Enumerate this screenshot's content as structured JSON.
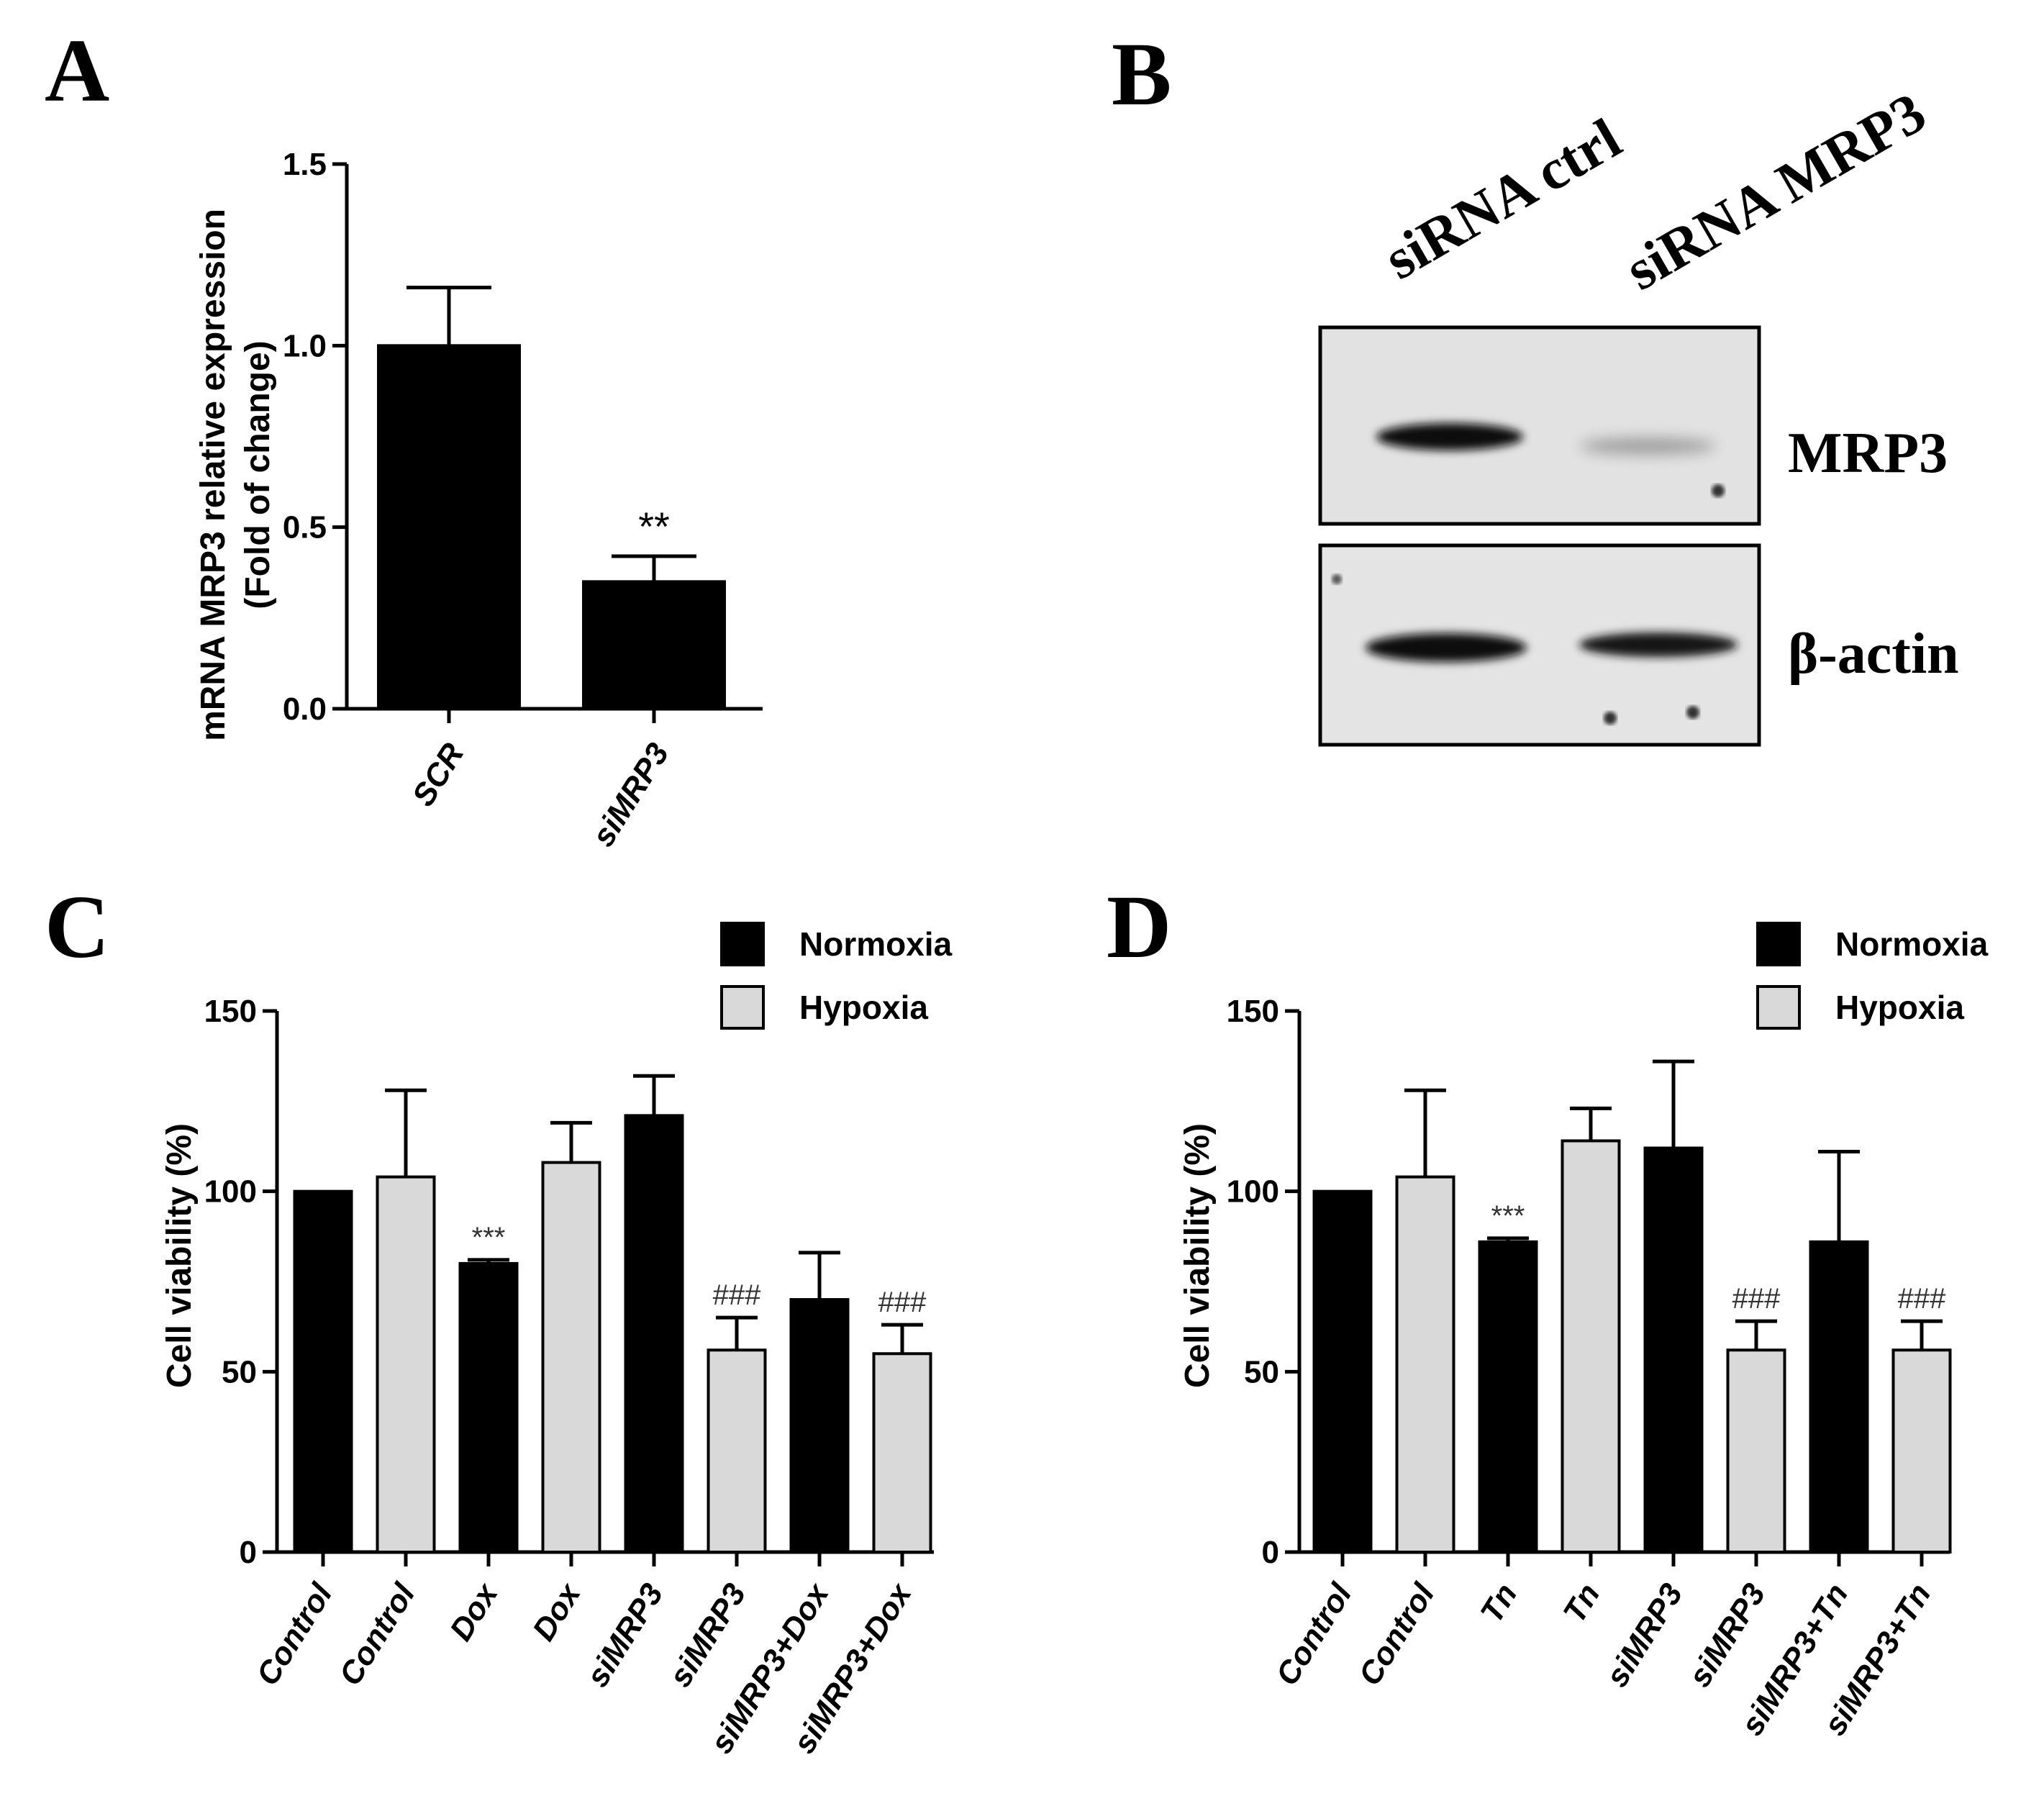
{
  "panels": {
    "a": "A",
    "b": "B",
    "c": "C",
    "d": "D"
  },
  "blot": {
    "lanes": [
      "siRNA ctrl",
      "siRNA MRP3"
    ],
    "rows": [
      "MRP3",
      "β-actin"
    ]
  },
  "colors": {
    "normoxia": "#000000",
    "hypoxia": "#d9d9d9"
  },
  "chart_data": [
    {
      "id": "A",
      "type": "bar",
      "categories": [
        "SCR",
        "siMRP3"
      ],
      "values": [
        1.0,
        0.35
      ],
      "errors": [
        0.16,
        0.07
      ],
      "significance": [
        "",
        "**"
      ],
      "ylabel_lines": [
        "mRNA MRP3 relative expression",
        "(Fold of change)"
      ],
      "ylim": [
        0,
        1.5
      ],
      "yticks": [
        "0.0",
        "0.5",
        "1.0",
        "1.5"
      ]
    },
    {
      "id": "C",
      "type": "bar",
      "categories": [
        "Control",
        "Control",
        "Dox",
        "Dox",
        "siMRP3",
        "siMRP3",
        "siMRP3+Dox",
        "siMRP3+Dox"
      ],
      "groups": [
        "Normoxia",
        "Hypoxia",
        "Normoxia",
        "Hypoxia",
        "Normoxia",
        "Hypoxia",
        "Normoxia",
        "Hypoxia"
      ],
      "values": [
        100,
        104,
        80,
        108,
        121,
        56,
        70,
        55
      ],
      "errors": [
        0,
        24,
        1,
        11,
        11,
        9,
        13,
        8
      ],
      "significance": [
        "",
        "",
        "***",
        "",
        "",
        "###",
        "",
        "###"
      ],
      "legend": [
        "Normoxia",
        "Hypoxia"
      ],
      "ylabel": "Cell viability (%)",
      "ylim": [
        0,
        150
      ],
      "yticks": [
        "0",
        "50",
        "100",
        "150"
      ]
    },
    {
      "id": "D",
      "type": "bar",
      "categories": [
        "Control",
        "Control",
        "Tn",
        "Tn",
        "siMRP3",
        "siMRP3",
        "siMRP3+Tn",
        "siMRP3+Tn"
      ],
      "groups": [
        "Normoxia",
        "Hypoxia",
        "Normoxia",
        "Hypoxia",
        "Normoxia",
        "Hypoxia",
        "Normoxia",
        "Hypoxia"
      ],
      "values": [
        100,
        104,
        86,
        114,
        112,
        56,
        86,
        56
      ],
      "errors": [
        0,
        24,
        1,
        9,
        24,
        8,
        25,
        8
      ],
      "significance": [
        "",
        "",
        "***",
        "",
        "",
        "###",
        "",
        "###"
      ],
      "legend": [
        "Normoxia",
        "Hypoxia"
      ],
      "ylabel": "Cell viability (%)",
      "ylim": [
        0,
        150
      ],
      "yticks": [
        "0",
        "50",
        "100",
        "150"
      ]
    }
  ]
}
